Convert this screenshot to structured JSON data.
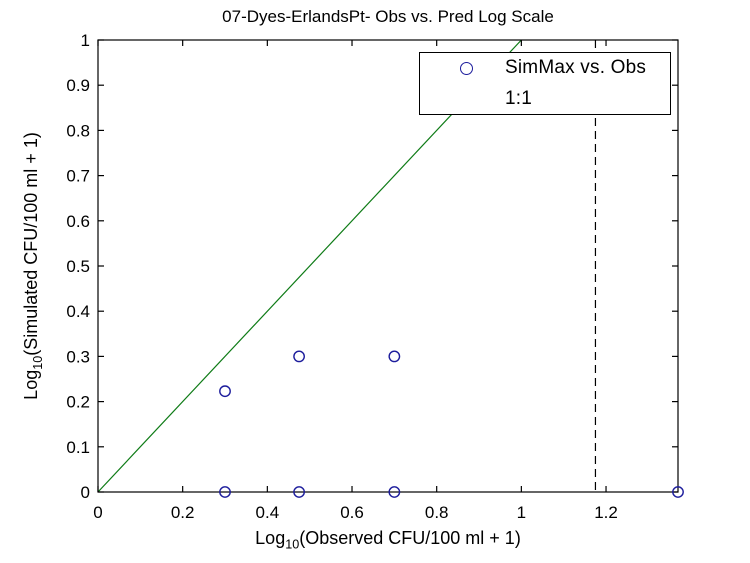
{
  "chart_data": {
    "type": "scatter",
    "title": "07-Dyes-ErlandsPt- Obs vs. Pred Log Scale",
    "xlabel": {
      "pre": "Log",
      "sub": "10",
      "post": "(Observed CFU/100 ml + 1)"
    },
    "ylabel": {
      "pre": "Log",
      "sub": "10",
      "post": "(Simulated CFU/100 ml + 1)"
    },
    "xlim": [
      0,
      1.37
    ],
    "ylim": [
      0,
      1
    ],
    "x_ticks": [
      0,
      0.2,
      0.4,
      0.6,
      0.8,
      1,
      1.2
    ],
    "x_tick_labels": [
      "0",
      "0.2",
      "0.4",
      "0.6",
      "0.8",
      "1",
      "1.2"
    ],
    "y_ticks": [
      0,
      0.1,
      0.2,
      0.3,
      0.4,
      0.5,
      0.6,
      0.7,
      0.8,
      0.9,
      1
    ],
    "y_tick_labels": [
      "0",
      "0.1",
      "0.2",
      "0.3",
      "0.4",
      "0.5",
      "0.6",
      "0.7",
      "0.8",
      "0.9",
      "1"
    ],
    "grid": false,
    "box": true,
    "series": [
      {
        "name": "SimMax vs. Obs",
        "kind": "scatter",
        "marker": "circle",
        "color": "#1c1c9c",
        "points": [
          [
            0.3,
            0.223
          ],
          [
            0.475,
            0.3
          ],
          [
            0.7,
            0.3
          ],
          [
            0.3,
            0
          ],
          [
            0.475,
            0
          ],
          [
            0.7,
            0
          ],
          [
            1.37,
            0
          ]
        ]
      },
      {
        "name": "1:1",
        "kind": "line",
        "color": "#0e7b16",
        "points": [
          [
            0,
            0
          ],
          [
            1,
            1
          ]
        ]
      }
    ],
    "annotations": [
      {
        "type": "vline",
        "x": 1.175,
        "style": "dashed",
        "color": "#000000"
      }
    ],
    "legend": {
      "position": "top-right",
      "entries": [
        {
          "label": "SimMax vs. Obs",
          "sample": "circle-marker"
        },
        {
          "label": "1:1",
          "sample": "line"
        }
      ]
    },
    "colors": {
      "marker_blue": "#1c1c9c",
      "line_green": "#0e7b16",
      "axis_black": "#000000",
      "background": "#ffffff"
    }
  }
}
